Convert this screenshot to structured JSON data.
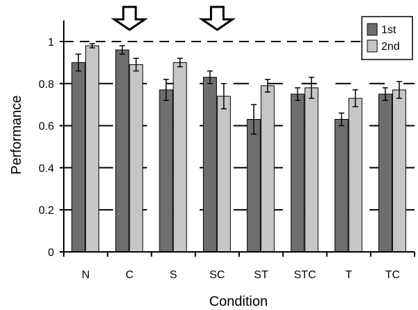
{
  "chart_data": {
    "type": "bar",
    "title": "",
    "xlabel": "Condition",
    "ylabel": "Performance",
    "ylim": [
      0,
      1.1
    ],
    "yticks": [
      0,
      0.2,
      0.4,
      0.6,
      0.8,
      1
    ],
    "ytick_labels": [
      "0",
      "0.2",
      "0.4",
      "0.6",
      "0.8",
      "1"
    ],
    "categories": [
      "N",
      "C",
      "S",
      "SC",
      "ST",
      "STC",
      "T",
      "TC"
    ],
    "series": [
      {
        "name": "1st",
        "color": "#6e6e6e",
        "values": [
          0.9,
          0.96,
          0.77,
          0.83,
          0.63,
          0.75,
          0.63,
          0.75
        ],
        "errors": [
          0.04,
          0.02,
          0.05,
          0.03,
          0.07,
          0.03,
          0.03,
          0.03
        ]
      },
      {
        "name": "2nd",
        "color": "#c6c6c6",
        "values": [
          0.98,
          0.89,
          0.9,
          0.74,
          0.79,
          0.78,
          0.73,
          0.77
        ],
        "errors": [
          0.01,
          0.03,
          0.02,
          0.06,
          0.03,
          0.05,
          0.04,
          0.04
        ]
      }
    ],
    "reference_lines": [
      0.8,
      0.6,
      0.4,
      0.2
    ],
    "reference_lines_top": [
      1.0
    ],
    "arrow_categories": [
      "C",
      "SC"
    ],
    "legend_position": "top-right",
    "grid": false
  }
}
